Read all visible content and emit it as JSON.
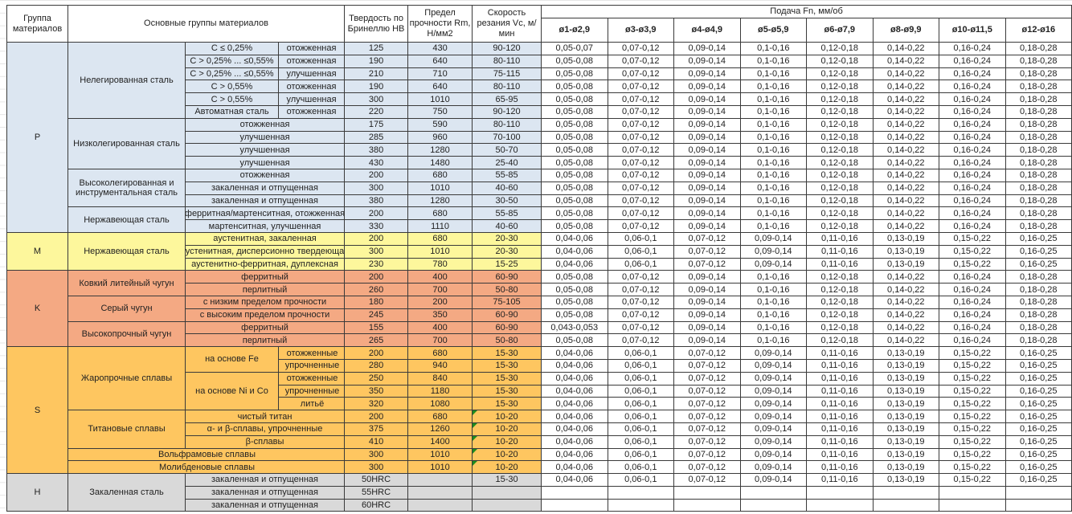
{
  "header": {
    "group": "Группа материалов",
    "main_groups": "Основные группы материалов",
    "hardness": "Твердость по Бринеллю HB",
    "strength": "Предел прочности Rm, Н/мм2",
    "speed": "Скорость резания Vc, м/мин",
    "feed": "Подача Fn, мм/об",
    "diameters": [
      "ø1-ø2,9",
      "ø3-ø3,9",
      "ø4-ø4,9",
      "ø5-ø5,9",
      "ø6-ø7,9",
      "ø8-ø9,9",
      "ø10-ø11,5",
      "ø12-ø16"
    ]
  },
  "groups": [
    {
      "code": "P",
      "color": "#dce6f1",
      "subgroups": [
        {
          "name": "Нелегированная сталь",
          "rows": [
            {
              "cond": "C ≤ 0,25%",
              "treat": "отожженная",
              "hb": "125",
              "rm": "430",
              "vc": "90-120",
              "feed": [
                "0,05-0,07",
                "0,07-0,12",
                "0,09-0,14",
                "0,1-0,16",
                "0,12-0,18",
                "0,14-0,22",
                "0,16-0,24",
                "0,18-0,28"
              ]
            },
            {
              "cond": "C > 0,25% ... ≤0,55%",
              "treat": "отожженная",
              "hb": "190",
              "rm": "640",
              "vc": "80-110",
              "feed": [
                "0,05-0,08",
                "0,07-0,12",
                "0,09-0,14",
                "0,1-0,16",
                "0,12-0,18",
                "0,14-0,22",
                "0,16-0,24",
                "0,18-0,28"
              ]
            },
            {
              "cond": "C > 0,25% ... ≤0,55%",
              "treat": "улучшенная",
              "hb": "210",
              "rm": "710",
              "vc": "75-115",
              "feed": [
                "0,05-0,08",
                "0,07-0,12",
                "0,09-0,14",
                "0,1-0,16",
                "0,12-0,18",
                "0,14-0,22",
                "0,16-0,24",
                "0,18-0,28"
              ]
            },
            {
              "cond": "C > 0,55%",
              "treat": "отожженная",
              "hb": "190",
              "rm": "640",
              "vc": "80-110",
              "feed": [
                "0,05-0,08",
                "0,07-0,12",
                "0,09-0,14",
                "0,1-0,16",
                "0,12-0,18",
                "0,14-0,22",
                "0,16-0,24",
                "0,18-0,28"
              ]
            },
            {
              "cond": "C > 0,55%",
              "treat": "улучшенная",
              "hb": "300",
              "rm": "1010",
              "vc": "65-95",
              "feed": [
                "0,05-0,08",
                "0,07-0,12",
                "0,09-0,14",
                "0,1-0,16",
                "0,12-0,18",
                "0,14-0,22",
                "0,16-0,24",
                "0,18-0,28"
              ]
            },
            {
              "cond": "Автоматная сталь",
              "treat": "отожженная",
              "hb": "220",
              "rm": "750",
              "vc": "90-120",
              "feed": [
                "0,05-0,08",
                "0,07-0,12",
                "0,09-0,14",
                "0,1-0,16",
                "0,12-0,18",
                "0,14-0,22",
                "0,16-0,24",
                "0,18-0,28"
              ]
            }
          ]
        },
        {
          "name": "Низколегированная сталь",
          "rows": [
            {
              "treat": "отожженная",
              "hb": "175",
              "rm": "590",
              "vc": "80-110",
              "feed": [
                "0,05-0,08",
                "0,07-0,12",
                "0,09-0,14",
                "0,1-0,16",
                "0,12-0,18",
                "0,14-0,22",
                "0,16-0,24",
                "0,18-0,28"
              ]
            },
            {
              "treat": "улучшенная",
              "hb": "285",
              "rm": "960",
              "vc": "70-100",
              "feed": [
                "0,05-0,08",
                "0,07-0,12",
                "0,09-0,14",
                "0,1-0,16",
                "0,12-0,18",
                "0,14-0,22",
                "0,16-0,24",
                "0,18-0,28"
              ]
            },
            {
              "treat": "улучшенная",
              "hb": "380",
              "rm": "1280",
              "vc": "50-70",
              "feed": [
                "0,05-0,08",
                "0,07-0,12",
                "0,09-0,14",
                "0,1-0,16",
                "0,12-0,18",
                "0,14-0,22",
                "0,16-0,24",
                "0,18-0,28"
              ]
            },
            {
              "treat": "улучшенная",
              "hb": "430",
              "rm": "1480",
              "vc": "25-40",
              "feed": [
                "0,05-0,08",
                "0,07-0,12",
                "0,09-0,14",
                "0,1-0,16",
                "0,12-0,18",
                "0,14-0,22",
                "0,16-0,24",
                "0,18-0,28"
              ]
            }
          ]
        },
        {
          "name": "Высоколегированная и инструментальная сталь",
          "rows": [
            {
              "treat": "отожженная",
              "hb": "200",
              "rm": "680",
              "vc": "55-85",
              "feed": [
                "0,05-0,08",
                "0,07-0,12",
                "0,09-0,14",
                "0,1-0,16",
                "0,12-0,18",
                "0,14-0,22",
                "0,16-0,24",
                "0,18-0,28"
              ]
            },
            {
              "treat": "закаленная и отпущенная",
              "hb": "300",
              "rm": "1010",
              "vc": "40-60",
              "feed": [
                "0,05-0,08",
                "0,07-0,12",
                "0,09-0,14",
                "0,1-0,16",
                "0,12-0,18",
                "0,14-0,22",
                "0,16-0,24",
                "0,18-0,28"
              ]
            },
            {
              "treat": "закаленная и отпущенная",
              "hb": "380",
              "rm": "1280",
              "vc": "30-50",
              "feed": [
                "0,05-0,08",
                "0,07-0,12",
                "0,09-0,14",
                "0,1-0,16",
                "0,12-0,18",
                "0,14-0,22",
                "0,16-0,24",
                "0,18-0,28"
              ]
            }
          ]
        },
        {
          "name": "Нержавеющая сталь",
          "rows": [
            {
              "treat": "ферритная/мартенситная, отожженная",
              "hb": "200",
              "rm": "680",
              "vc": "55-85",
              "feed": [
                "0,05-0,08",
                "0,07-0,12",
                "0,09-0,14",
                "0,1-0,16",
                "0,12-0,18",
                "0,14-0,22",
                "0,16-0,24",
                "0,18-0,28"
              ]
            },
            {
              "treat": "мартенситная, улучшенная",
              "hb": "330",
              "rm": "1110",
              "vc": "40-60",
              "feed": [
                "0,05-0,08",
                "0,07-0,12",
                "0,09-0,14",
                "0,1-0,16",
                "0,12-0,18",
                "0,14-0,22",
                "0,16-0,24",
                "0,18-0,28"
              ]
            }
          ]
        }
      ]
    },
    {
      "code": "M",
      "color": "#fdf79c",
      "subgroups": [
        {
          "name": "Нержавеющая сталь",
          "rows": [
            {
              "treat": "аустенитная, закаленная",
              "hb": "200",
              "rm": "680",
              "vc": "20-30",
              "feed": [
                "0,04-0,06",
                "0,06-0,1",
                "0,07-0,12",
                "0,09-0,14",
                "0,11-0,16",
                "0,13-0,19",
                "0,15-0,22",
                "0,16-0,25"
              ]
            },
            {
              "treat": "аустенитная, дисперсионно твердеющая",
              "hb": "300",
              "rm": "1010",
              "vc": "20-30",
              "feed": [
                "0,04-0,06",
                "0,06-0,1",
                "0,07-0,12",
                "0,09-0,14",
                "0,11-0,16",
                "0,13-0,19",
                "0,15-0,22",
                "0,16-0,25"
              ]
            },
            {
              "treat": "аустенитно-ферритная, дуплексная",
              "hb": "230",
              "rm": "780",
              "vc": "15-25",
              "feed": [
                "0,04-0,06",
                "0,06-0,1",
                "0,07-0,12",
                "0,09-0,14",
                "0,11-0,16",
                "0,13-0,19",
                "0,15-0,22",
                "0,16-0,25"
              ]
            }
          ]
        }
      ]
    },
    {
      "code": "K",
      "color": "#f4a983",
      "subgroups": [
        {
          "name": "Ковкий литейный чугун",
          "rows": [
            {
              "treat": "ферритный",
              "hb": "200",
              "rm": "400",
              "vc": "60-90",
              "feed": [
                "0,05-0,08",
                "0,07-0,12",
                "0,09-0,14",
                "0,1-0,16",
                "0,12-0,18",
                "0,14-0,22",
                "0,16-0,24",
                "0,18-0,28"
              ]
            },
            {
              "treat": "перлитный",
              "hb": "260",
              "rm": "700",
              "vc": "50-80",
              "feed": [
                "0,05-0,08",
                "0,07-0,12",
                "0,09-0,14",
                "0,1-0,16",
                "0,12-0,18",
                "0,14-0,22",
                "0,16-0,24",
                "0,18-0,28"
              ]
            }
          ]
        },
        {
          "name": "Серый чугун",
          "rows": [
            {
              "treat": "с низким пределом прочности",
              "hb": "180",
              "rm": "200",
              "vc": "75-105",
              "feed": [
                "0,05-0,08",
                "0,07-0,12",
                "0,09-0,14",
                "0,1-0,16",
                "0,12-0,18",
                "0,14-0,22",
                "0,16-0,24",
                "0,18-0,28"
              ]
            },
            {
              "treat": "с высоким пределом прочности",
              "hb": "245",
              "rm": "350",
              "vc": "60-90",
              "feed": [
                "0,05-0,08",
                "0,07-0,12",
                "0,09-0,14",
                "0,1-0,16",
                "0,12-0,18",
                "0,14-0,22",
                "0,16-0,24",
                "0,18-0,28"
              ]
            }
          ]
        },
        {
          "name": "Высокопрочный чугун",
          "rows": [
            {
              "treat": "ферритный",
              "hb": "155",
              "rm": "400",
              "vc": "60-90",
              "feed": [
                "0,043-0,053",
                "0,07-0,12",
                "0,09-0,14",
                "0,1-0,16",
                "0,12-0,18",
                "0,14-0,22",
                "0,16-0,24",
                "0,18-0,28"
              ]
            },
            {
              "treat": "перлитный",
              "hb": "265",
              "rm": "700",
              "vc": "50-80",
              "feed": [
                "0,05-0,08",
                "0,07-0,12",
                "0,09-0,14",
                "0,1-0,16",
                "0,12-0,18",
                "0,14-0,22",
                "0,16-0,24",
                "0,18-0,28"
              ]
            }
          ]
        }
      ]
    },
    {
      "code": "S",
      "color": "#fec660",
      "subgroups": [
        {
          "name": "Жаропрочные сплавы",
          "parts": [
            {
              "name": "на основе Fe",
              "rows": [
                {
                  "treat": "отожженные",
                  "hb": "200",
                  "rm": "680",
                  "vc": "15-30",
                  "feed": [
                    "0,04-0,06",
                    "0,06-0,1",
                    "0,07-0,12",
                    "0,09-0,14",
                    "0,11-0,16",
                    "0,13-0,19",
                    "0,15-0,22",
                    "0,16-0,25"
                  ]
                },
                {
                  "treat": "упрочненные",
                  "hb": "280",
                  "rm": "940",
                  "vc": "15-30",
                  "feed": [
                    "0,04-0,06",
                    "0,06-0,1",
                    "0,07-0,12",
                    "0,09-0,14",
                    "0,11-0,16",
                    "0,13-0,19",
                    "0,15-0,22",
                    "0,16-0,25"
                  ]
                }
              ]
            },
            {
              "name": "на основе Ni и Co",
              "rows": [
                {
                  "treat": "отожженные",
                  "hb": "250",
                  "rm": "840",
                  "vc": "15-30",
                  "feed": [
                    "0,04-0,06",
                    "0,06-0,1",
                    "0,07-0,12",
                    "0,09-0,14",
                    "0,11-0,16",
                    "0,13-0,19",
                    "0,15-0,22",
                    "0,16-0,25"
                  ]
                },
                {
                  "treat": "упрочненные",
                  "hb": "350",
                  "rm": "1180",
                  "vc": "15-30",
                  "feed": [
                    "0,04-0,06",
                    "0,06-0,1",
                    "0,07-0,12",
                    "0,09-0,14",
                    "0,11-0,16",
                    "0,13-0,19",
                    "0,15-0,22",
                    "0,16-0,25"
                  ]
                },
                {
                  "treat": "литьё",
                  "hb": "320",
                  "rm": "1080",
                  "vc": "15-30",
                  "feed": [
                    "0,04-0,06",
                    "0,06-0,1",
                    "0,07-0,12",
                    "0,09-0,14",
                    "0,11-0,16",
                    "0,13-0,19",
                    "0,15-0,22",
                    "0,16-0,25"
                  ]
                }
              ]
            }
          ]
        },
        {
          "name": "Титановые сплавы",
          "rows": [
            {
              "treat": "чистый титан",
              "hb": "200",
              "rm": "680",
              "vc": "10-20",
              "indicator": true,
              "feed": [
                "0,04-0,06",
                "0,06-0,1",
                "0,07-0,12",
                "0,09-0,14",
                "0,11-0,16",
                "0,13-0,19",
                "0,15-0,22",
                "0,16-0,25"
              ]
            },
            {
              "treat": "α- и β-сплавы, упрочненные",
              "hb": "375",
              "rm": "1260",
              "vc": "10-20",
              "indicator": true,
              "feed": [
                "0,04-0,06",
                "0,06-0,1",
                "0,07-0,12",
                "0,09-0,14",
                "0,11-0,16",
                "0,13-0,19",
                "0,15-0,22",
                "0,16-0,25"
              ]
            },
            {
              "treat": "β-сплавы",
              "hb": "410",
              "rm": "1400",
              "vc": "10-20",
              "indicator": true,
              "feed": [
                "0,04-0,06",
                "0,06-0,1",
                "0,07-0,12",
                "0,09-0,14",
                "0,11-0,16",
                "0,13-0,19",
                "0,15-0,22",
                "0,16-0,25"
              ]
            }
          ]
        },
        {
          "name": "Вольфрамовые сплавы",
          "rows": [
            {
              "hb": "300",
              "rm": "1010",
              "vc": "10-20",
              "indicator": true,
              "feed": [
                "0,04-0,06",
                "0,06-0,1",
                "0,07-0,12",
                "0,09-0,14",
                "0,11-0,16",
                "0,13-0,19",
                "0,15-0,22",
                "0,16-0,25"
              ]
            }
          ]
        },
        {
          "name": "Молибденовые сплавы",
          "rows": [
            {
              "hb": "300",
              "rm": "1010",
              "vc": "10-20",
              "indicator": true,
              "feed": [
                "0,04-0,06",
                "0,06-0,1",
                "0,07-0,12",
                "0,09-0,14",
                "0,11-0,16",
                "0,13-0,19",
                "0,15-0,22",
                "0,16-0,25"
              ]
            }
          ]
        }
      ]
    },
    {
      "code": "H",
      "color": "#d9d9d9",
      "subgroups": [
        {
          "name": "Закаленная сталь",
          "rows": [
            {
              "treat": "закаленная и отпущенная",
              "hb": "50HRC",
              "rm": "",
              "vc": "15-30",
              "feed": [
                "0,04-0,06",
                "0,06-0,1",
                "0,07-0,12",
                "0,09-0,14",
                "0,11-0,16",
                "0,13-0,19",
                "0,15-0,22",
                "0,16-0,25"
              ]
            },
            {
              "treat": "закаленная и отпущенная",
              "hb": "55HRC",
              "rm": "",
              "vc": "",
              "feed": []
            },
            {
              "treat": "закаленная и отпущенная",
              "hb": "60HRC",
              "rm": "",
              "vc": "",
              "feed": []
            }
          ]
        }
      ]
    }
  ]
}
